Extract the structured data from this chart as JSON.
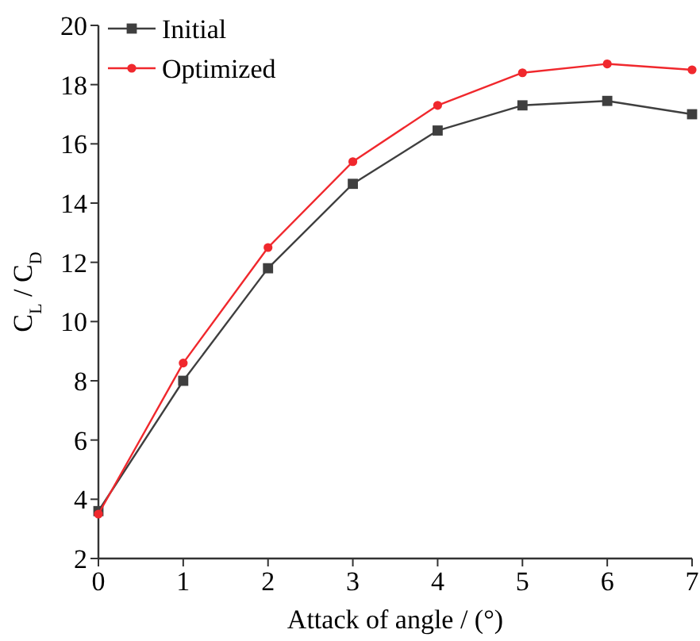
{
  "chart_data": {
    "type": "line",
    "xlabel": "Attack of angle / (°)",
    "ylabel": "C$_{L}$ / C$_{D}$",
    "x": [
      0,
      1,
      2,
      3,
      4,
      5,
      6,
      7
    ],
    "series": [
      {
        "name": "Initial",
        "color": "#3f3f3f",
        "marker": "square",
        "values": [
          3.6,
          8.0,
          11.8,
          14.65,
          16.45,
          17.3,
          17.45,
          17.0
        ]
      },
      {
        "name": "Optimized",
        "color": "#f0282d",
        "marker": "circle",
        "values": [
          3.5,
          8.6,
          12.5,
          15.4,
          17.3,
          18.4,
          18.7,
          18.5
        ]
      }
    ],
    "xlim": [
      0,
      7
    ],
    "xticks": [
      0,
      1,
      2,
      3,
      4,
      5,
      6,
      7
    ],
    "ylim": [
      2,
      20
    ],
    "yticks": [
      2,
      4,
      6,
      8,
      10,
      12,
      14,
      16,
      18,
      20
    ],
    "grid": false,
    "legend": "top left"
  }
}
